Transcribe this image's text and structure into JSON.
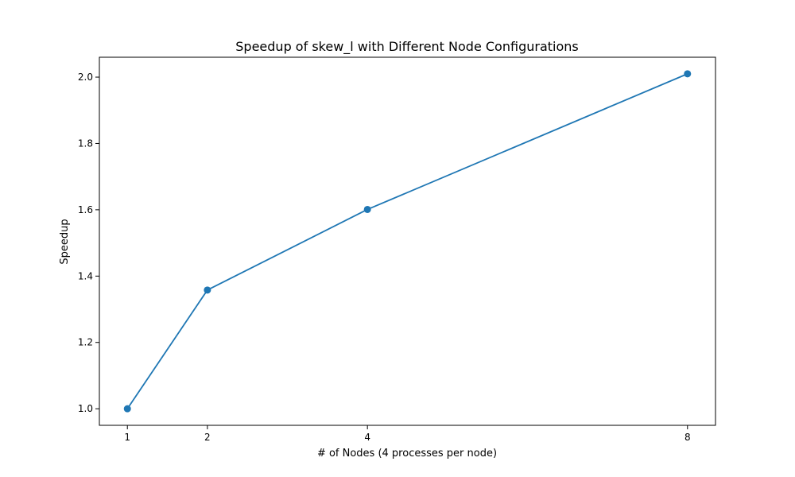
{
  "chart_data": {
    "type": "line",
    "title": "Speedup of skew_l with Different Node Configurations",
    "xlabel": "# of Nodes (4 processes per node)",
    "ylabel": "Speedup",
    "x": [
      1,
      2,
      4,
      8
    ],
    "xticks": [
      "1",
      "2",
      "4",
      "8"
    ],
    "yticks": [
      "1.0",
      "1.2",
      "1.4",
      "1.6",
      "1.8",
      "2.0"
    ],
    "ytick_values": [
      1.0,
      1.2,
      1.4,
      1.6,
      1.8,
      2.0
    ],
    "xlim": [
      0.65,
      8.35
    ],
    "ylim": [
      0.95,
      2.06
    ],
    "grid": false,
    "series": [
      {
        "values": [
          1.0,
          1.358,
          1.601,
          2.01
        ],
        "color": "#1f77b4",
        "marker": "circle"
      }
    ]
  }
}
